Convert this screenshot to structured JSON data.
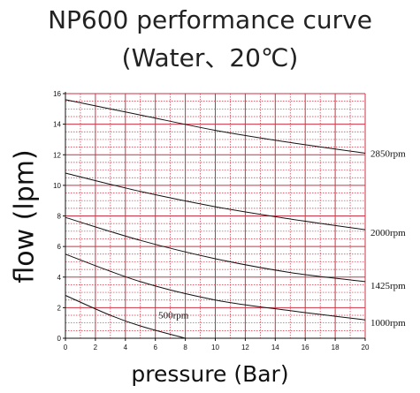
{
  "chart_data": {
    "type": "line",
    "title": "NP600 performance curve",
    "subtitle": "(Water、20℃)",
    "xlabel": "pressure (Bar)",
    "ylabel": "flow (lpm)",
    "xlim": [
      0,
      20
    ],
    "ylim": [
      0,
      16
    ],
    "xticks": [
      "0",
      "2",
      "4",
      "6",
      "8",
      "10",
      "12",
      "14",
      "16",
      "18",
      "20"
    ],
    "yticks": [
      "0",
      "2",
      "4",
      "6",
      "8",
      "10",
      "12",
      "14",
      "16"
    ],
    "grid": true,
    "grid_color": "#cc3344",
    "line_color": "#111111",
    "series": [
      {
        "name": "2850rpm",
        "x": [
          0,
          5,
          10,
          15,
          20
        ],
        "y": [
          15.6,
          14.6,
          13.6,
          12.8,
          12.1
        ]
      },
      {
        "name": "2000rpm",
        "x": [
          0,
          5,
          10,
          15,
          20
        ],
        "y": [
          10.8,
          9.6,
          8.6,
          7.8,
          7.1
        ]
      },
      {
        "name": "1425rpm",
        "x": [
          0,
          5,
          10,
          15,
          20
        ],
        "y": [
          7.9,
          6.4,
          5.2,
          4.3,
          3.7
        ]
      },
      {
        "name": "1000rpm",
        "x": [
          0,
          5,
          10,
          15,
          20
        ],
        "y": [
          5.5,
          3.7,
          2.5,
          1.8,
          1.2
        ]
      },
      {
        "name": "500rpm",
        "x": [
          0,
          3,
          5,
          8
        ],
        "y": [
          2.8,
          1.5,
          0.8,
          0.0
        ]
      }
    ]
  }
}
